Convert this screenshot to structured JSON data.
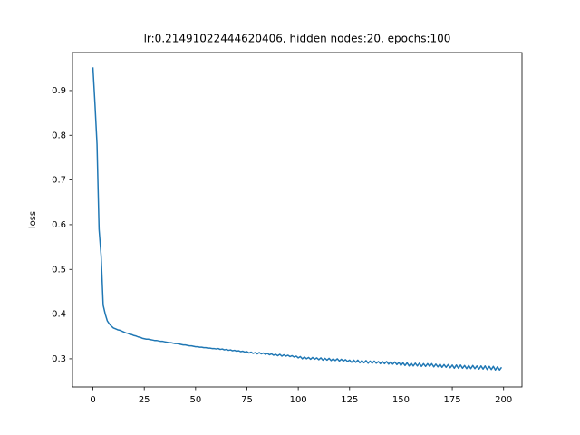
{
  "chart_data": {
    "type": "line",
    "title": "lr:0.21491022444620406, hidden nodes:20, epochs:100",
    "y_label": "loss",
    "xlim": [
      -9.95,
      208.95
    ],
    "ylim": [
      0.237,
      0.985
    ],
    "xticks": [
      0,
      25,
      50,
      75,
      100,
      125,
      150,
      175,
      200
    ],
    "yticks": [
      0.3,
      0.4,
      0.5,
      0.6,
      0.7,
      0.8,
      0.9
    ],
    "series": [
      {
        "color": "#1f77b4",
        "x": [
          0,
          1,
          2,
          3,
          4,
          5,
          6,
          7,
          8,
          9,
          10,
          11,
          12,
          13,
          14,
          15,
          16,
          17,
          18,
          19,
          20,
          21,
          22,
          23,
          24,
          25,
          26,
          27,
          28,
          29,
          30,
          31,
          32,
          33,
          34,
          35,
          36,
          37,
          38,
          39,
          40,
          41,
          42,
          43,
          44,
          45,
          46,
          47,
          48,
          49,
          50,
          51,
          52,
          53,
          54,
          55,
          56,
          57,
          58,
          59,
          60,
          61,
          62,
          63,
          64,
          65,
          66,
          67,
          68,
          69,
          70,
          71,
          72,
          73,
          74,
          75,
          76,
          77,
          78,
          79,
          80,
          81,
          82,
          83,
          84,
          85,
          86,
          87,
          88,
          89,
          90,
          91,
          92,
          93,
          94,
          95,
          96,
          97,
          98,
          99,
          100,
          101,
          102,
          103,
          104,
          105,
          106,
          107,
          108,
          109,
          110,
          111,
          112,
          113,
          114,
          115,
          116,
          117,
          118,
          119,
          120,
          121,
          122,
          123,
          124,
          125,
          126,
          127,
          128,
          129,
          130,
          131,
          132,
          133,
          134,
          135,
          136,
          137,
          138,
          139,
          140,
          141,
          142,
          143,
          144,
          145,
          146,
          147,
          148,
          149,
          150,
          151,
          152,
          153,
          154,
          155,
          156,
          157,
          158,
          159,
          160,
          161,
          162,
          163,
          164,
          165,
          166,
          167,
          168,
          169,
          170,
          171,
          172,
          173,
          174,
          175,
          176,
          177,
          178,
          179,
          180,
          181,
          182,
          183,
          184,
          185,
          186,
          187,
          188,
          189,
          190,
          191,
          192,
          193,
          194,
          195,
          196,
          197,
          198,
          199
        ],
        "values": [
          0.952,
          0.87,
          0.78,
          0.59,
          0.53,
          0.42,
          0.4,
          0.385,
          0.378,
          0.373,
          0.369,
          0.367,
          0.365,
          0.364,
          0.362,
          0.36,
          0.358,
          0.357,
          0.355,
          0.354,
          0.352,
          0.351,
          0.349,
          0.348,
          0.346,
          0.345,
          0.344,
          0.344,
          0.343,
          0.342,
          0.341,
          0.341,
          0.34,
          0.339,
          0.339,
          0.338,
          0.337,
          0.336,
          0.336,
          0.335,
          0.334,
          0.334,
          0.333,
          0.332,
          0.331,
          0.331,
          0.33,
          0.329,
          0.329,
          0.328,
          0.327,
          0.327,
          0.326,
          0.326,
          0.325,
          0.325,
          0.324,
          0.324,
          0.323,
          0.323,
          0.322,
          0.323,
          0.321,
          0.322,
          0.32,
          0.321,
          0.319,
          0.32,
          0.318,
          0.319,
          0.317,
          0.318,
          0.316,
          0.317,
          0.315,
          0.316,
          0.313,
          0.315,
          0.312,
          0.314,
          0.311,
          0.314,
          0.311,
          0.313,
          0.31,
          0.312,
          0.309,
          0.311,
          0.308,
          0.31,
          0.307,
          0.31,
          0.306,
          0.309,
          0.306,
          0.308,
          0.305,
          0.307,
          0.304,
          0.306,
          0.302,
          0.305,
          0.3,
          0.304,
          0.3,
          0.303,
          0.299,
          0.303,
          0.299,
          0.302,
          0.298,
          0.302,
          0.297,
          0.301,
          0.297,
          0.301,
          0.296,
          0.3,
          0.296,
          0.3,
          0.295,
          0.299,
          0.295,
          0.298,
          0.294,
          0.297,
          0.292,
          0.297,
          0.292,
          0.297,
          0.291,
          0.296,
          0.291,
          0.296,
          0.29,
          0.295,
          0.29,
          0.295,
          0.29,
          0.294,
          0.289,
          0.294,
          0.289,
          0.294,
          0.288,
          0.293,
          0.288,
          0.293,
          0.287,
          0.292,
          0.285,
          0.291,
          0.285,
          0.291,
          0.284,
          0.29,
          0.284,
          0.29,
          0.284,
          0.29,
          0.283,
          0.289,
          0.283,
          0.289,
          0.283,
          0.289,
          0.282,
          0.288,
          0.282,
          0.288,
          0.281,
          0.287,
          0.281,
          0.287,
          0.28,
          0.286,
          0.279,
          0.286,
          0.279,
          0.286,
          0.279,
          0.285,
          0.278,
          0.285,
          0.278,
          0.285,
          0.278,
          0.284,
          0.277,
          0.284,
          0.277,
          0.284,
          0.276,
          0.283,
          0.276,
          0.283,
          0.275,
          0.282,
          0.275,
          0.281
        ]
      }
    ]
  }
}
